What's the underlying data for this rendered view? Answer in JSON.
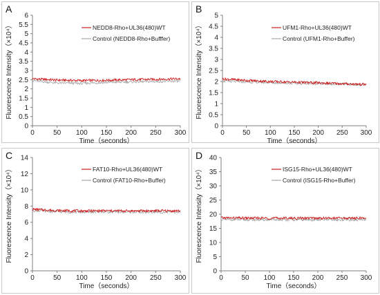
{
  "figure": {
    "colors": {
      "treated": "#cc1f1f",
      "control": "#a6a6a6",
      "axis": "#7f7f7f"
    }
  },
  "chart_data": [
    {
      "type": "line",
      "panel_label": "A",
      "title": "",
      "xlabel": "Time（seconds）",
      "ylabel": "Fluorescence Intensity（×10⁴）",
      "xlim": [
        0,
        300
      ],
      "ylim": [
        0,
        6
      ],
      "x_ticks": [
        0,
        50,
        100,
        150,
        200,
        250,
        300
      ],
      "y_ticks": [
        0,
        0.5,
        1,
        1.5,
        2,
        2.5,
        3,
        3.5,
        4,
        4.5,
        5,
        5.5,
        6
      ],
      "grid": false,
      "legend_position": "top-right",
      "series": [
        {
          "name": "NEDD8-Rho+UL36(480)WT",
          "x": [
            0,
            50,
            100,
            150,
            200,
            250,
            300
          ],
          "values": [
            2.55,
            2.48,
            2.45,
            2.47,
            2.5,
            2.52,
            2.55
          ]
        },
        {
          "name": "Control (NEDD8-Rho+Bufffer)",
          "x": [
            0,
            50,
            100,
            150,
            200,
            250,
            300
          ],
          "values": [
            2.45,
            2.32,
            2.3,
            2.35,
            2.38,
            2.4,
            2.42
          ]
        }
      ]
    },
    {
      "type": "line",
      "panel_label": "B",
      "title": "",
      "xlabel": "Time（seconds）",
      "ylabel": "Fluorescence Intensity（×10⁴）",
      "xlim": [
        0,
        300
      ],
      "ylim": [
        0,
        5
      ],
      "x_ticks": [
        0,
        50,
        100,
        150,
        200,
        250,
        300
      ],
      "y_ticks": [
        0,
        0.5,
        1,
        1.5,
        2,
        2.5,
        3,
        3.5,
        4,
        4.5,
        5
      ],
      "grid": false,
      "legend_position": "top-right",
      "series": [
        {
          "name": "UFM1-Rho+UL36(480)WT",
          "x": [
            0,
            50,
            100,
            150,
            200,
            250,
            300
          ],
          "values": [
            2.12,
            2.05,
            2.0,
            1.97,
            1.94,
            1.9,
            1.87
          ]
        },
        {
          "name": "Control (UFM1-Rho+Buffer)",
          "x": [
            0,
            50,
            100,
            150,
            200,
            250,
            300
          ],
          "values": [
            2.02,
            1.98,
            1.95,
            1.92,
            1.9,
            1.88,
            1.85
          ]
        }
      ]
    },
    {
      "type": "line",
      "panel_label": "C",
      "title": "",
      "xlabel": "Time（seconds）",
      "ylabel": "Fluorescence Intensity（×10⁴）",
      "xlim": [
        0,
        300
      ],
      "ylim": [
        0,
        14
      ],
      "x_ticks": [
        0,
        50,
        100,
        150,
        200,
        250,
        300
      ],
      "y_ticks": [
        0,
        2,
        4,
        6,
        8,
        10,
        12,
        14
      ],
      "grid": false,
      "legend_position": "top-right",
      "series": [
        {
          "name": "FAT10-Rho+UL36(480)WT",
          "x": [
            0,
            50,
            100,
            150,
            200,
            250,
            300
          ],
          "values": [
            7.6,
            7.45,
            7.4,
            7.42,
            7.4,
            7.42,
            7.4
          ]
        },
        {
          "name": "Control (FAT10-Rho+Buffer)",
          "x": [
            0,
            50,
            100,
            150,
            200,
            250,
            300
          ],
          "values": [
            7.45,
            7.3,
            7.25,
            7.28,
            7.25,
            7.25,
            7.25
          ]
        }
      ]
    },
    {
      "type": "line",
      "panel_label": "D",
      "title": "",
      "xlabel": "Time（seconds）",
      "ylabel": "Fluorescence Intensity（×10⁴）",
      "xlim": [
        0,
        300
      ],
      "ylim": [
        0,
        40
      ],
      "x_ticks": [
        0,
        50,
        100,
        150,
        200,
        250,
        300
      ],
      "y_ticks": [
        0,
        5,
        10,
        15,
        20,
        25,
        30,
        35,
        40
      ],
      "grid": false,
      "legend_position": "top-right",
      "series": [
        {
          "name": "ISG15-Rho+UL36(480)WT",
          "x": [
            0,
            50,
            100,
            150,
            200,
            250,
            300
          ],
          "values": [
            18.7,
            18.6,
            18.6,
            18.6,
            18.6,
            18.6,
            18.6
          ]
        },
        {
          "name": "Control (ISG15-Rho+Buffer)",
          "x": [
            0,
            50,
            100,
            150,
            200,
            250,
            300
          ],
          "values": [
            18.1,
            18.0,
            18.0,
            18.0,
            18.0,
            18.0,
            18.0
          ]
        }
      ]
    }
  ]
}
